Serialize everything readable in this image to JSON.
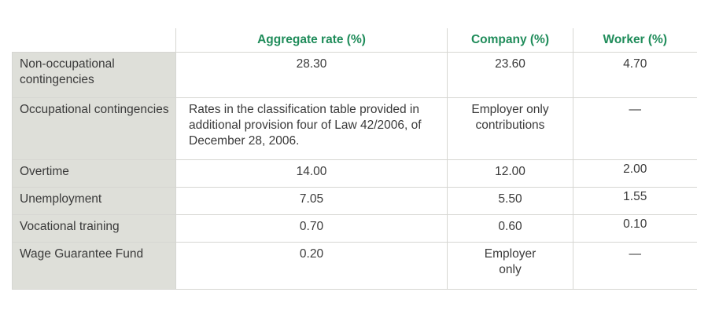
{
  "table": {
    "headers": [
      "",
      "Aggregate rate (%)",
      "Company (%)",
      "Worker (%)"
    ],
    "rows": [
      {
        "label": "Non-occupational contingencies",
        "aggregate": "28.30",
        "company": "23.60",
        "worker": "4.70"
      },
      {
        "label": "Occupational contingencies",
        "aggregate": "Rates in the classification table provided in additional provision four of Law 42/2006, of December 28, 2006.",
        "company": "Employer only contributions",
        "worker": "—"
      },
      {
        "label": "Overtime",
        "aggregate": "14.00",
        "company": "12.00",
        "worker": "2.00"
      },
      {
        "label": "Unemployment",
        "aggregate": "7.05",
        "company": "5.50",
        "worker": "1.55"
      },
      {
        "label": "Vocational training",
        "aggregate": "0.70",
        "company": "0.60",
        "worker": "0.10"
      },
      {
        "label": "Wage Guarantee Fund",
        "aggregate": "0.20",
        "company": "Employer only",
        "worker": "—"
      }
    ]
  },
  "colors": {
    "header_text": "#1f8c5a",
    "label_bg": "#dedfd9",
    "border": "#d6d6d2"
  }
}
